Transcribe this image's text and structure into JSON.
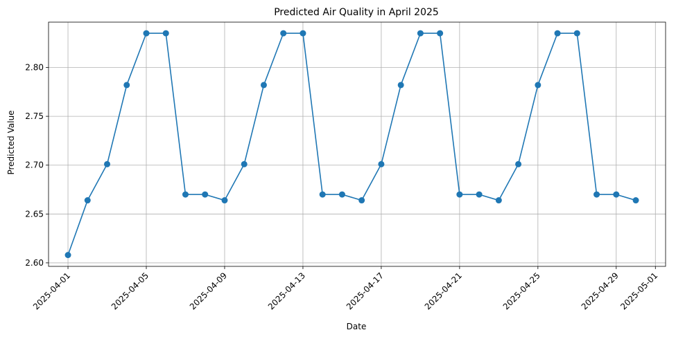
{
  "chart_data": {
    "type": "line",
    "title": "Predicted Air Quality in April 2025",
    "xlabel": "Date",
    "ylabel": "Predicted Value",
    "grid": true,
    "legend": "none",
    "color": "#1f77b4",
    "x": [
      "2025-04-01",
      "2025-04-02",
      "2025-04-03",
      "2025-04-04",
      "2025-04-05",
      "2025-04-06",
      "2025-04-07",
      "2025-04-08",
      "2025-04-09",
      "2025-04-10",
      "2025-04-11",
      "2025-04-12",
      "2025-04-13",
      "2025-04-14",
      "2025-04-15",
      "2025-04-16",
      "2025-04-17",
      "2025-04-18",
      "2025-04-19",
      "2025-04-20",
      "2025-04-21",
      "2025-04-22",
      "2025-04-23",
      "2025-04-24",
      "2025-04-25",
      "2025-04-26",
      "2025-04-27",
      "2025-04-28",
      "2025-04-29",
      "2025-04-30"
    ],
    "series": [
      {
        "values": [
          2.608,
          2.664,
          2.701,
          2.782,
          2.835,
          2.835,
          2.67,
          2.67,
          2.664,
          2.701,
          2.782,
          2.835,
          2.835,
          2.67,
          2.67,
          2.664,
          2.701,
          2.782,
          2.835,
          2.835,
          2.67,
          2.67,
          2.664,
          2.701,
          2.782,
          2.835,
          2.835,
          2.67,
          2.67,
          2.664
        ]
      }
    ],
    "xlim": [
      "2025-03-31T00:10",
      "2025-05-01T12:30"
    ],
    "ylim": [
      2.5964,
      2.8464
    ],
    "x_ticks": [
      "2025-04-01",
      "2025-04-05",
      "2025-04-09",
      "2025-04-13",
      "2025-04-17",
      "2025-04-21",
      "2025-04-25",
      "2025-04-29",
      "2025-05-01"
    ],
    "y_ticks": [
      "2.60",
      "2.65",
      "2.70",
      "2.75",
      "2.80"
    ]
  }
}
